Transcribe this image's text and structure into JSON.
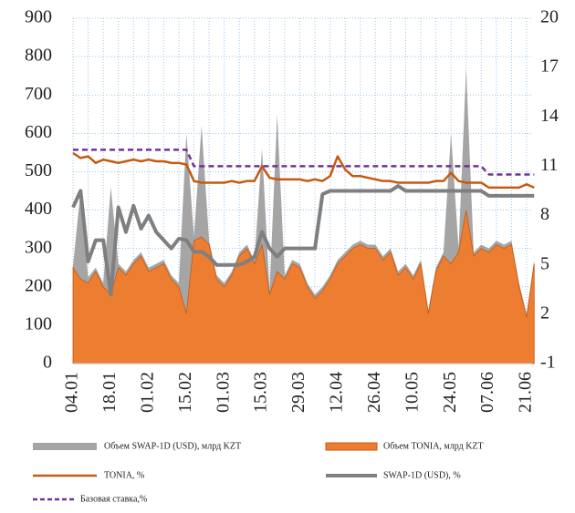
{
  "chart_data": {
    "type": "combo",
    "categories": [
      "04.01",
      null,
      null,
      null,
      null,
      "18.01",
      null,
      null,
      null,
      null,
      "01.02",
      null,
      null,
      null,
      null,
      "15.02",
      null,
      null,
      null,
      null,
      "01.03",
      null,
      null,
      null,
      null,
      "15.03",
      null,
      null,
      null,
      null,
      "29.03",
      null,
      null,
      null,
      null,
      "12.04",
      null,
      null,
      null,
      null,
      "26.04",
      null,
      null,
      null,
      null,
      "10.05",
      null,
      null,
      null,
      null,
      "24.05",
      null,
      null,
      null,
      null,
      "07.06",
      null,
      null,
      null,
      null,
      "21.06",
      null
    ],
    "ylim": [
      0,
      900
    ],
    "yticks": [
      0,
      100,
      200,
      300,
      400,
      500,
      600,
      700,
      800,
      900
    ],
    "y2lim": [
      -1,
      20
    ],
    "y2ticks": [
      -1,
      2,
      5,
      8,
      11,
      14,
      17,
      20
    ],
    "grid": true,
    "series": [
      {
        "name": "Объем SWAP-1D (USD), млрд KZT",
        "type": "area",
        "color": "#a5a5a5",
        "values": [
          255,
          450,
          225,
          250,
          210,
          460,
          260,
          240,
          270,
          290,
          250,
          260,
          270,
          230,
          210,
          600,
          330,
          620,
          320,
          230,
          210,
          240,
          290,
          310,
          270,
          560,
          190,
          650,
          230,
          270,
          260,
          210,
          180,
          200,
          230,
          270,
          290,
          310,
          320,
          310,
          310,
          280,
          300,
          240,
          260,
          230,
          270,
          140,
          250,
          290,
          600,
          300,
          770,
          290,
          310,
          300,
          320,
          310,
          320,
          210,
          130,
          270
        ]
      },
      {
        "name": "Объем TONIA, млрд KZT",
        "type": "area",
        "color": "#ed7d31",
        "values": [
          250,
          220,
          210,
          240,
          200,
          180,
          250,
          230,
          260,
          280,
          240,
          250,
          260,
          220,
          200,
          130,
          320,
          330,
          310,
          220,
          200,
          230,
          280,
          300,
          260,
          310,
          180,
          240,
          220,
          260,
          250,
          200,
          170,
          190,
          220,
          260,
          280,
          300,
          310,
          300,
          300,
          270,
          290,
          230,
          250,
          220,
          260,
          130,
          240,
          280,
          260,
          290,
          400,
          280,
          300,
          290,
          310,
          300,
          310,
          200,
          120,
          260
        ]
      },
      {
        "name": "TONIA, %",
        "type": "line",
        "axis": "y2",
        "color": "#c55a11",
        "values": [
          11.8,
          11.5,
          11.6,
          11.2,
          11.4,
          11.3,
          11.2,
          11.3,
          11.4,
          11.3,
          11.4,
          11.3,
          11.3,
          11.2,
          11.2,
          11.1,
          10.1,
          10.0,
          10.0,
          10.0,
          10.0,
          10.1,
          10.0,
          10.1,
          10.1,
          11.0,
          10.3,
          10.2,
          10.2,
          10.2,
          10.2,
          10.1,
          10.2,
          10.1,
          10.4,
          11.6,
          10.8,
          10.4,
          10.4,
          10.3,
          10.2,
          10.1,
          10.1,
          10.0,
          10.0,
          10.0,
          10.0,
          10.0,
          10.1,
          10.1,
          10.6,
          10.1,
          10.0,
          10.0,
          10.0,
          9.7,
          9.7,
          9.7,
          9.7,
          9.7,
          9.9,
          9.7
        ]
      },
      {
        "name": "SWAP-1D (USD), %",
        "type": "line",
        "axis": "y2",
        "color": "#7f7f7f",
        "values": [
          8.5,
          9.5,
          5.2,
          6.5,
          6.5,
          3.2,
          8.5,
          7.0,
          8.6,
          7.2,
          8.0,
          7.0,
          6.5,
          6.0,
          6.6,
          6.5,
          5.8,
          5.8,
          5.5,
          5.0,
          5.0,
          5.0,
          5.0,
          5.2,
          5.5,
          7.0,
          6.0,
          5.5,
          6.0,
          6.0,
          6.0,
          6.0,
          6.0,
          9.3,
          9.5,
          9.5,
          9.5,
          9.5,
          9.5,
          9.5,
          9.5,
          9.5,
          9.5,
          9.8,
          9.5,
          9.5,
          9.5,
          9.5,
          9.5,
          9.5,
          9.5,
          9.5,
          9.5,
          9.5,
          9.5,
          9.2,
          9.2,
          9.2,
          9.2,
          9.2,
          9.2,
          9.2
        ]
      },
      {
        "name": "Базовая ставка,%",
        "type": "line",
        "axis": "y2",
        "dash": true,
        "color": "#7030a0",
        "values": [
          12,
          12,
          12,
          12,
          12,
          12,
          12,
          12,
          12,
          12,
          12,
          12,
          12,
          12,
          12,
          12,
          11,
          11,
          11,
          11,
          11,
          11,
          11,
          11,
          11,
          11,
          11,
          11,
          11,
          11,
          11,
          11,
          11,
          11,
          11,
          11,
          11,
          11,
          11,
          11,
          11,
          11,
          11,
          11,
          11,
          11,
          11,
          11,
          11,
          11,
          11,
          11,
          11,
          11,
          11,
          10.5,
          10.5,
          10.5,
          10.5,
          10.5,
          10.5,
          10.5
        ]
      }
    ]
  }
}
